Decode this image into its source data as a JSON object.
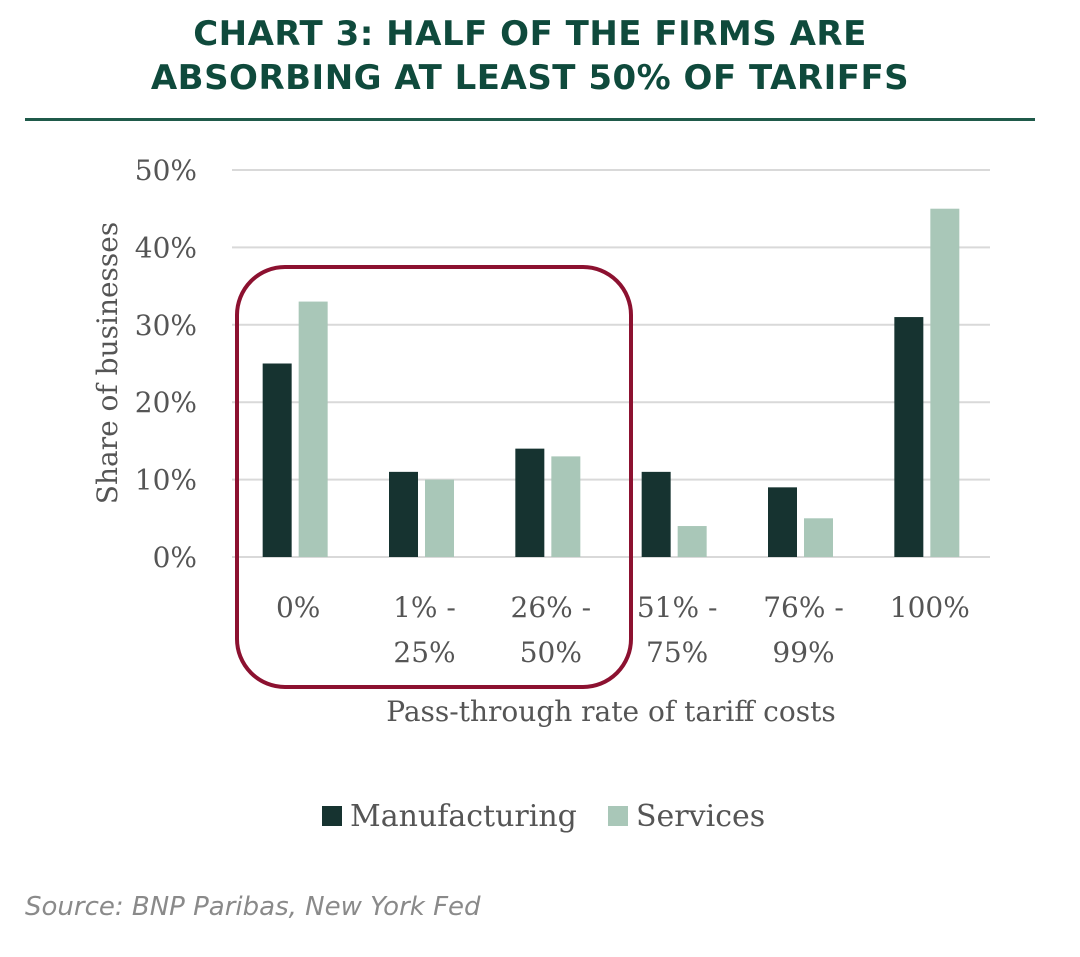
{
  "header": {
    "title_line1": "CHART 3: HALF OF THE FIRMS ARE",
    "title_line2": "ABSORBING AT LEAST 50% OF TARIFFS"
  },
  "source": "Source: BNP Paribas, New York Fed",
  "colors": {
    "title": "#0f4a3c",
    "rule": "#1f5a4a",
    "manufacturing": "#163330",
    "services": "#a9c7b8",
    "highlight_box": "#8c1130",
    "grid": "#d9d9d9",
    "text": "#555555"
  },
  "chart_data": {
    "type": "bar",
    "title": "CHART 3: HALF OF THE FIRMS ARE ABSORBING AT LEAST 50% OF TARIFFS",
    "xlabel": "Pass-through rate of tariff costs",
    "ylabel": "Share of businesses",
    "categories": [
      [
        "0%"
      ],
      [
        "1% -",
        "25%"
      ],
      [
        "26% -",
        "50%"
      ],
      [
        "51% -",
        "75%"
      ],
      [
        "76% -",
        "99%"
      ],
      [
        "100%"
      ]
    ],
    "series": [
      {
        "name": "Manufacturing",
        "values": [
          25,
          11,
          14,
          11,
          9,
          31
        ]
      },
      {
        "name": "Services",
        "values": [
          33,
          10,
          13,
          4,
          5,
          45
        ]
      }
    ],
    "y_ticks": [
      "0%",
      "10%",
      "20%",
      "30%",
      "40%",
      "50%"
    ],
    "ylim": [
      0,
      50
    ],
    "grid": true,
    "legend_position": "bottom",
    "highlight": {
      "categories": [
        "0%",
        "1% - 25%",
        "26% - 50%"
      ],
      "shape": "rounded-rectangle"
    }
  }
}
